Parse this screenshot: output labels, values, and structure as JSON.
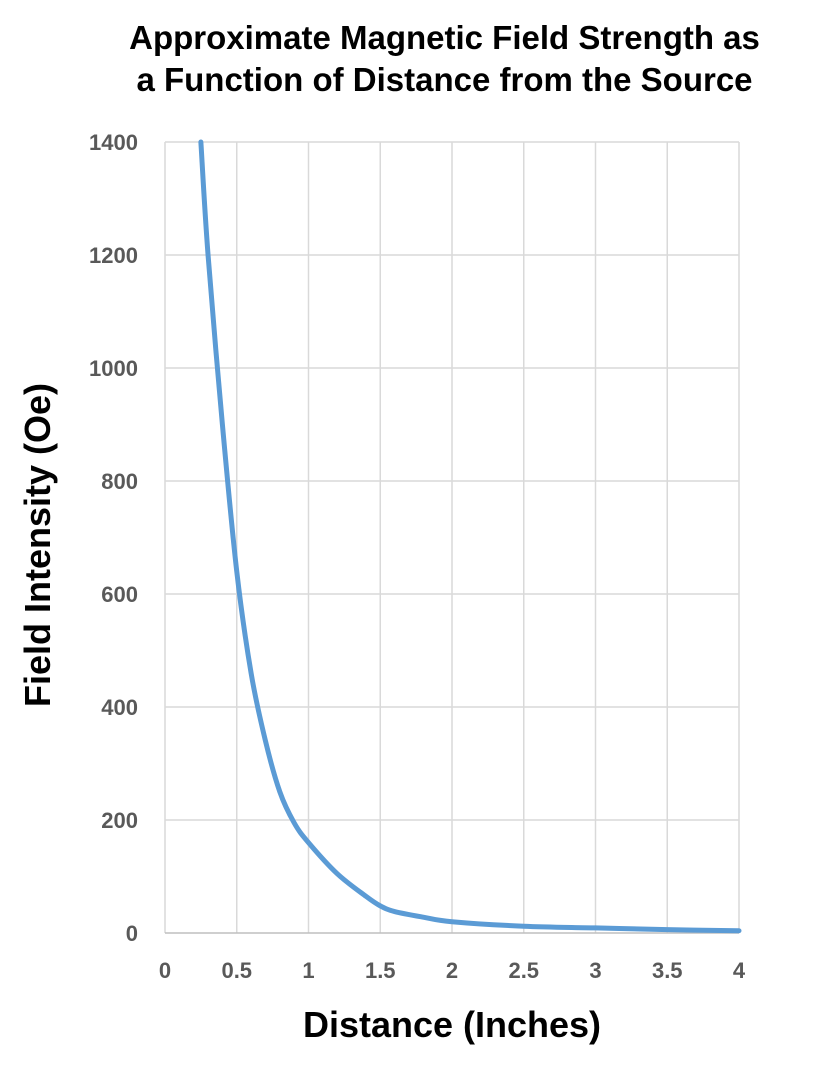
{
  "chart_data": {
    "type": "line",
    "title_lines": [
      "Approximate Magnetic Field Strength as",
      "a Function of Distance from the Source"
    ],
    "xlabel": "Distance (Inches)",
    "ylabel": "Field Intensity (Oe)",
    "xlim": [
      0,
      4
    ],
    "ylim": [
      0,
      1400
    ],
    "xticks": [
      "0",
      "0.5",
      "1",
      "1.5",
      "2",
      "2.5",
      "3",
      "3.5",
      "4"
    ],
    "yticks": [
      "0",
      "200",
      "400",
      "600",
      "800",
      "1000",
      "1200",
      "1400"
    ],
    "grid": true,
    "legend": "none",
    "series": [
      {
        "color": "#5B9BD5",
        "x": [
          0.25,
          0.3,
          0.4,
          0.5,
          0.6,
          0.7,
          0.8,
          0.9,
          1.0,
          1.2,
          1.4,
          1.5,
          1.6,
          1.8,
          2.0,
          2.5,
          3.0,
          3.5,
          4.0
        ],
        "y": [
          1400,
          1200,
          900,
          640,
          460,
          340,
          250,
          195,
          160,
          105,
          65,
          48,
          38,
          28,
          20,
          12,
          9,
          6,
          4
        ]
      }
    ]
  }
}
